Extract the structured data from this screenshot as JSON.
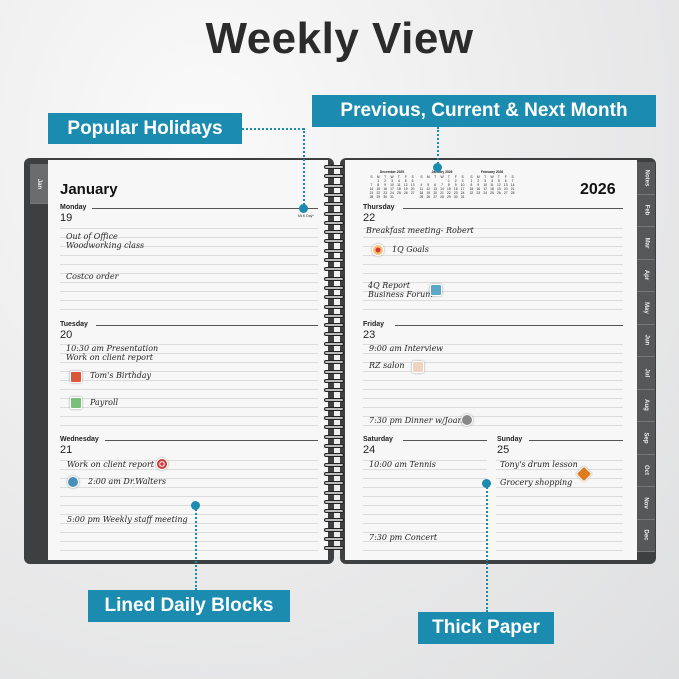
{
  "title": "Weekly View",
  "callouts": {
    "holidays": "Popular Holidays",
    "months": "Previous, Current & Next Month",
    "lined": "Lined Daily Blocks",
    "paper": "Thick Paper"
  },
  "colors": {
    "accent": "#1b8cb0",
    "cover": "#3d3f40"
  },
  "left_page": {
    "tab": "Jan",
    "month": "January",
    "holiday": "MLK Day*",
    "days": [
      {
        "name": "Monday",
        "num": "19",
        "entries": [
          "Out of Office",
          "Woodworking class",
          "Costco order"
        ]
      },
      {
        "name": "Tuesday",
        "num": "20",
        "entries": [
          "10:30 am Presentation",
          "Work on client report",
          "Tom's Birthday",
          "Payroll"
        ]
      },
      {
        "name": "Wednesday",
        "num": "21",
        "entries": [
          "Work on client report",
          "2:00 am Dr.Walters",
          "5:00 pm Weekly staff meeting"
        ]
      }
    ]
  },
  "right_page": {
    "year": "2026",
    "mini_calendars": [
      {
        "title": "December 2025",
        "weeks": [
          [
            "",
            "1",
            "2",
            "3",
            "4",
            "5",
            "6"
          ],
          [
            "7",
            "8",
            "9",
            "10",
            "11",
            "12",
            "13"
          ],
          [
            "14",
            "15",
            "16",
            "17",
            "18",
            "19",
            "20"
          ],
          [
            "21",
            "22",
            "23",
            "24",
            "25",
            "26",
            "27"
          ],
          [
            "28",
            "29",
            "30",
            "31",
            "",
            "",
            ""
          ]
        ]
      },
      {
        "title": "January 2026",
        "weeks": [
          [
            "",
            "",
            "",
            "",
            "1",
            "2",
            "3"
          ],
          [
            "4",
            "5",
            "6",
            "7",
            "8",
            "9",
            "10"
          ],
          [
            "11",
            "12",
            "13",
            "14",
            "15",
            "16",
            "17"
          ],
          [
            "18",
            "19",
            "20",
            "21",
            "22",
            "23",
            "24"
          ],
          [
            "25",
            "26",
            "27",
            "28",
            "29",
            "30",
            "31"
          ]
        ]
      },
      {
        "title": "February 2026",
        "weeks": [
          [
            "1",
            "2",
            "3",
            "4",
            "5",
            "6",
            "7"
          ],
          [
            "8",
            "9",
            "10",
            "11",
            "12",
            "13",
            "14"
          ],
          [
            "15",
            "16",
            "17",
            "18",
            "19",
            "20",
            "21"
          ],
          [
            "22",
            "23",
            "24",
            "25",
            "26",
            "27",
            "28"
          ]
        ]
      }
    ],
    "weekday_headers": [
      "S",
      "M",
      "T",
      "W",
      "T",
      "F",
      "S"
    ],
    "days": [
      {
        "name": "Thursday",
        "num": "22",
        "entries": [
          "Breakfast meeting- Robert",
          "1Q Goals",
          "4Q Report",
          "Business Forum"
        ]
      },
      {
        "name": "Friday",
        "num": "23",
        "entries": [
          "9:00 am Interview",
          "RZ salon",
          "7:30 pm Dinner w/Joan"
        ]
      },
      {
        "name": "Saturday",
        "num": "24",
        "entries": [
          "10:00 am Tennis",
          "7:30 pm Concert"
        ]
      },
      {
        "name": "Sunday",
        "num": "25",
        "entries": [
          "Tony's drum lesson",
          "Grocery shopping"
        ]
      }
    ],
    "tabs": [
      "Notes",
      "Feb",
      "Mar",
      "Apr",
      "May",
      "Jun",
      "Jul",
      "Aug",
      "Sep",
      "Oct",
      "Nov",
      "Dec"
    ]
  }
}
